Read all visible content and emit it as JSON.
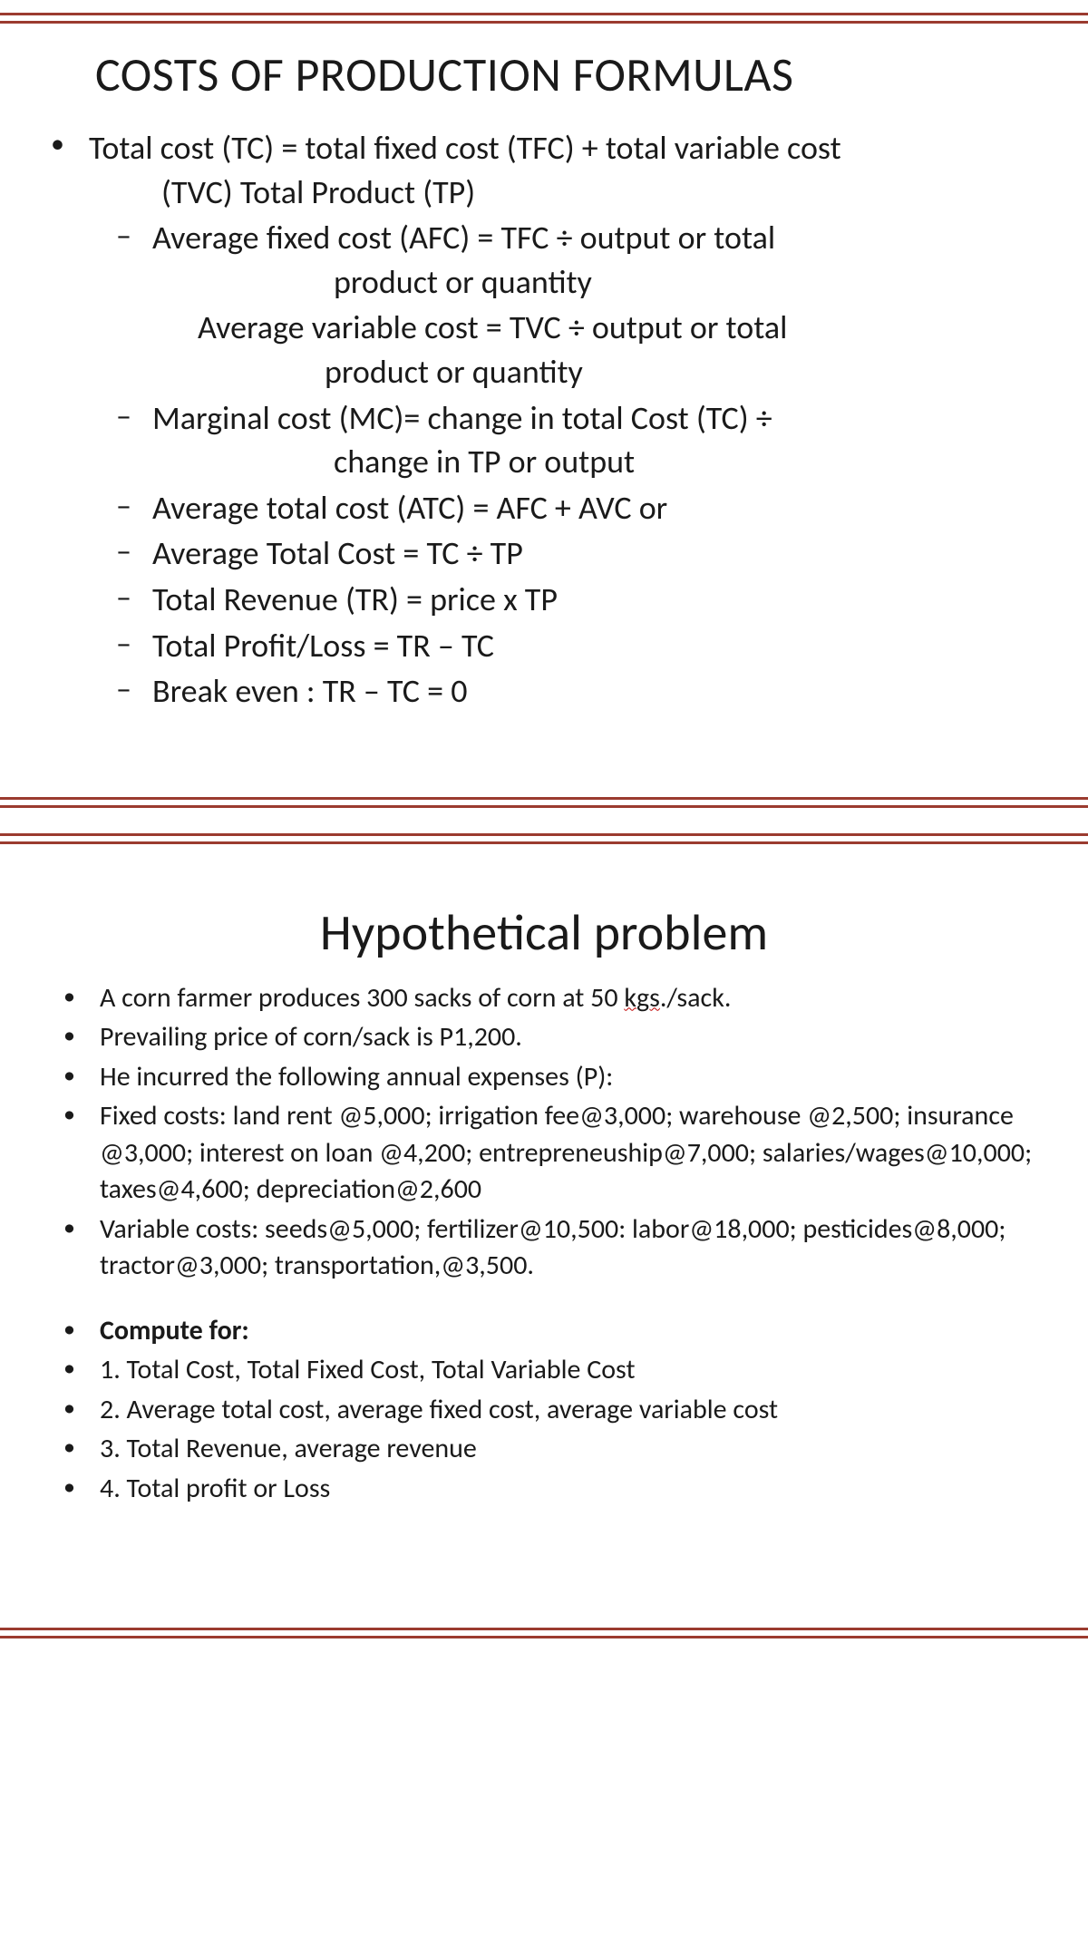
{
  "colors": {
    "rule": "#9b3b2f",
    "text": "#1a1a1a",
    "bg": "#ffffff",
    "underline": "#c00000"
  },
  "slide1": {
    "title": "COSTS OF PRODUCTION FORMULAS",
    "bullet1_line1": "Total cost (TC) = total fixed cost (TFC) + total variable cost",
    "bullet1_line2": "(TVC) Total Product (TP)",
    "sub1_line1": "Average fixed cost (AFC) = TFC ÷ output or total",
    "sub1_line2": "product or  quantity",
    "sub1_extra_line1": "Average variable cost  = TVC ÷ output or total",
    "sub1_extra_line2": "product or quantity",
    "sub2_line1": "Marginal cost (MC)= change in total Cost (TC) ÷",
    "sub2_line2": "change in TP or output",
    "sub3": "Average total cost (ATC) = AFC + AVC or",
    "sub4": "Average Total Cost  =   TC ÷ TP",
    "sub5": "Total Revenue (TR) = price x TP",
    "sub6": "Total Profit/Loss  =  TR – TC",
    "sub7": "Break even :  TR – TC = 0"
  },
  "slide2": {
    "title": "Hypothetical problem",
    "b1_pre": "A corn farmer produces 300 sacks of corn at 50 ",
    "b1_kgs": "kgs",
    "b1_post": "./sack.",
    "b2": "Prevailing price of corn/sack is P1,200.",
    "b3": "He incurred the following annual expenses (P):",
    "b4": "Fixed costs:  land rent @5,000; irrigation fee@3,000; warehouse @2,500; insurance @3,000; interest on loan @4,200; entrepreneuship@7,000; salaries/wages@10,000; taxes@4,600; depreciation@2,600",
    "b5": "Variable costs:  seeds@5,000; fertilizer@10,500: labor@18,000; pesticides@8,000; tractor@3,000; transportation,@3,500.",
    "compute": "Compute for:",
    "c1": "1. Total Cost, Total Fixed Cost, Total Variable Cost",
    "c2": "2.  Average total cost, average fixed cost, average variable cost",
    "c3": "3.  Total Revenue, average revenue",
    "c4": "4.  Total profit or Loss"
  }
}
